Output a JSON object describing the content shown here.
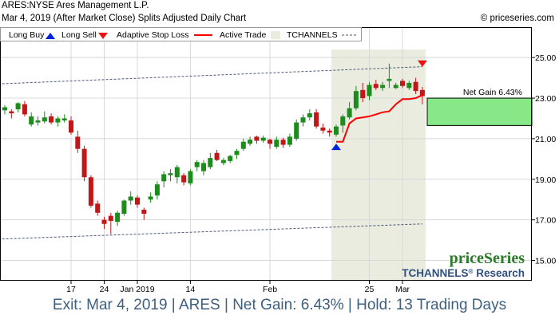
{
  "header": {
    "title": "ARES:NYSE Ares Management L.P.",
    "subtitle": "Mar 4, 2019 (After Market Close)  Splits Adjusted Daily Chart",
    "copyright": "© priceseries.com"
  },
  "legend": {
    "long_buy": "Long Buy",
    "long_sell": "Long Sell",
    "adaptive_stop": "Adaptive Stop Loss",
    "active_trade": "Active Trade",
    "tchannels": "TCHANNELS"
  },
  "annotations": {
    "net_gain_box": "Net Gain 6.43%"
  },
  "branding": {
    "logo": "priceSeries",
    "research": "TCHANNELS",
    "research_reg": "®",
    "research_suffix": " Research"
  },
  "footer": {
    "text": "Exit: Mar 4, 2019 | ARES | Net Gain: 6.43% | Hold: 13 Trading Days"
  },
  "colors": {
    "up": "#1c8c1c",
    "down": "#c01818",
    "stop": "#ff0000",
    "buy_arrow": "#0022dd",
    "sell_arrow": "#ee1111",
    "active_shade": "#e9ecdf",
    "gain_box": "#88e888",
    "channel": "#4a5a78",
    "grid": "#d8d8d8",
    "footer_text": "#3f5f7f",
    "brand_green": "#2a7a2a",
    "brand_blue": "#2f4f7f"
  },
  "chart_data": {
    "type": "candlestick",
    "ylim": [
      14.0,
      26.5
    ],
    "y_ticks": [
      "25.00",
      "23.00",
      "21.00",
      "19.00",
      "17.00",
      "15.00"
    ],
    "x_tick_labels": [
      "17",
      "24",
      "Jan 2019",
      "14",
      "Feb",
      "25",
      "Mar"
    ],
    "x_tick_bar_index": [
      10,
      15,
      20,
      28,
      40,
      55,
      60
    ],
    "bars": [
      {
        "o": 22.4,
        "h": 22.65,
        "l": 22.2,
        "c": 22.55
      },
      {
        "o": 22.35,
        "h": 22.45,
        "l": 22.0,
        "c": 22.25
      },
      {
        "o": 22.45,
        "h": 22.8,
        "l": 22.3,
        "c": 22.75
      },
      {
        "o": 22.7,
        "h": 22.85,
        "l": 22.1,
        "c": 22.2
      },
      {
        "o": 21.7,
        "h": 22.3,
        "l": 21.6,
        "c": 22.1
      },
      {
        "o": 21.8,
        "h": 22.1,
        "l": 21.65,
        "c": 21.9
      },
      {
        "o": 21.85,
        "h": 22.35,
        "l": 21.75,
        "c": 22.05
      },
      {
        "o": 22.1,
        "h": 22.25,
        "l": 21.7,
        "c": 21.8
      },
      {
        "o": 21.8,
        "h": 22.1,
        "l": 21.6,
        "c": 22.0
      },
      {
        "o": 21.9,
        "h": 22.2,
        "l": 21.8,
        "c": 22.0
      },
      {
        "o": 21.9,
        "h": 22.1,
        "l": 21.2,
        "c": 21.3
      },
      {
        "o": 21.1,
        "h": 21.4,
        "l": 20.3,
        "c": 20.5
      },
      {
        "o": 20.5,
        "h": 20.65,
        "l": 18.9,
        "c": 19.1
      },
      {
        "o": 19.1,
        "h": 19.2,
        "l": 17.6,
        "c": 17.7
      },
      {
        "o": 17.8,
        "h": 17.95,
        "l": 17.2,
        "c": 17.35
      },
      {
        "o": 17.0,
        "h": 17.15,
        "l": 16.55,
        "c": 16.8
      },
      {
        "o": 17.2,
        "h": 17.35,
        "l": 16.3,
        "c": 16.95
      },
      {
        "o": 16.9,
        "h": 17.45,
        "l": 16.7,
        "c": 17.35
      },
      {
        "o": 17.3,
        "h": 18.0,
        "l": 17.2,
        "c": 17.95
      },
      {
        "o": 17.95,
        "h": 18.4,
        "l": 17.75,
        "c": 18.15
      },
      {
        "o": 18.1,
        "h": 18.2,
        "l": 17.6,
        "c": 17.75
      },
      {
        "o": 17.5,
        "h": 17.6,
        "l": 17.0,
        "c": 17.3
      },
      {
        "o": 18.0,
        "h": 18.35,
        "l": 17.85,
        "c": 18.15
      },
      {
        "o": 18.2,
        "h": 18.9,
        "l": 18.0,
        "c": 18.75
      },
      {
        "o": 18.9,
        "h": 19.4,
        "l": 18.6,
        "c": 19.25
      },
      {
        "o": 19.2,
        "h": 19.5,
        "l": 18.9,
        "c": 19.3
      },
      {
        "o": 19.1,
        "h": 19.7,
        "l": 18.8,
        "c": 19.6
      },
      {
        "o": 19.2,
        "h": 19.3,
        "l": 18.7,
        "c": 18.85
      },
      {
        "o": 18.8,
        "h": 19.5,
        "l": 18.7,
        "c": 19.4
      },
      {
        "o": 19.6,
        "h": 19.95,
        "l": 19.4,
        "c": 19.85
      },
      {
        "o": 19.4,
        "h": 19.95,
        "l": 19.2,
        "c": 19.8
      },
      {
        "o": 19.6,
        "h": 20.3,
        "l": 19.5,
        "c": 20.05
      },
      {
        "o": 20.3,
        "h": 20.45,
        "l": 19.9,
        "c": 19.95
      },
      {
        "o": 19.8,
        "h": 20.05,
        "l": 19.7,
        "c": 19.95
      },
      {
        "o": 19.9,
        "h": 20.2,
        "l": 19.8,
        "c": 20.15
      },
      {
        "o": 20.2,
        "h": 20.5,
        "l": 20.0,
        "c": 20.4
      },
      {
        "o": 20.5,
        "h": 21.0,
        "l": 20.4,
        "c": 20.85
      },
      {
        "o": 20.75,
        "h": 21.1,
        "l": 20.65,
        "c": 20.95
      },
      {
        "o": 21.1,
        "h": 21.15,
        "l": 20.75,
        "c": 20.9
      },
      {
        "o": 20.9,
        "h": 21.15,
        "l": 20.8,
        "c": 21.05
      },
      {
        "o": 20.95,
        "h": 21.0,
        "l": 20.5,
        "c": 20.75
      },
      {
        "o": 20.6,
        "h": 21.1,
        "l": 20.5,
        "c": 20.95
      },
      {
        "o": 20.95,
        "h": 21.05,
        "l": 20.55,
        "c": 20.7
      },
      {
        "o": 20.7,
        "h": 21.25,
        "l": 20.6,
        "c": 21.1
      },
      {
        "o": 21.0,
        "h": 21.95,
        "l": 20.9,
        "c": 21.8
      },
      {
        "o": 21.8,
        "h": 22.2,
        "l": 21.6,
        "c": 22.05
      },
      {
        "o": 22.05,
        "h": 22.45,
        "l": 21.9,
        "c": 22.25
      },
      {
        "o": 22.3,
        "h": 22.45,
        "l": 21.5,
        "c": 21.6
      },
      {
        "o": 21.55,
        "h": 21.75,
        "l": 21.25,
        "c": 21.4
      },
      {
        "o": 21.4,
        "h": 21.5,
        "l": 21.1,
        "c": 21.3
      },
      {
        "o": 21.2,
        "h": 21.7,
        "l": 21.1,
        "c": 21.6
      },
      {
        "o": 21.65,
        "h": 22.2,
        "l": 21.3,
        "c": 22.1
      },
      {
        "o": 22.05,
        "h": 22.8,
        "l": 21.95,
        "c": 22.5
      },
      {
        "o": 22.5,
        "h": 23.6,
        "l": 22.4,
        "c": 23.35
      },
      {
        "o": 23.4,
        "h": 23.75,
        "l": 22.8,
        "c": 23.0
      },
      {
        "o": 23.1,
        "h": 23.8,
        "l": 22.9,
        "c": 23.65
      },
      {
        "o": 23.7,
        "h": 23.9,
        "l": 23.4,
        "c": 23.5
      },
      {
        "o": 23.5,
        "h": 23.8,
        "l": 23.35,
        "c": 23.65
      },
      {
        "o": 23.85,
        "h": 24.7,
        "l": 23.5,
        "c": 23.95
      },
      {
        "o": 23.5,
        "h": 23.75,
        "l": 23.45,
        "c": 23.65
      },
      {
        "o": 23.85,
        "h": 23.95,
        "l": 23.5,
        "c": 23.6
      },
      {
        "o": 23.5,
        "h": 23.85,
        "l": 23.4,
        "c": 23.75
      },
      {
        "o": 23.8,
        "h": 24.0,
        "l": 23.2,
        "c": 23.35
      },
      {
        "o": 23.4,
        "h": 23.55,
        "l": 22.7,
        "c": 23.1
      }
    ],
    "stop_loss": [
      {
        "i": 50,
        "v": 20.85
      },
      {
        "i": 51,
        "v": 20.85
      },
      {
        "i": 52,
        "v": 21.75
      },
      {
        "i": 53,
        "v": 22.0
      },
      {
        "i": 54,
        "v": 22.05
      },
      {
        "i": 55,
        "v": 22.1
      },
      {
        "i": 56,
        "v": 22.2
      },
      {
        "i": 57,
        "v": 22.3
      },
      {
        "i": 58,
        "v": 22.35
      },
      {
        "i": 59,
        "v": 22.7
      },
      {
        "i": 60,
        "v": 22.95
      },
      {
        "i": 61,
        "v": 22.95
      },
      {
        "i": 62,
        "v": 23.0
      },
      {
        "i": 63,
        "v": 23.15
      }
    ],
    "channel_upper": [
      {
        "i": -1,
        "v": 23.7
      },
      {
        "i": 63,
        "v": 24.55
      }
    ],
    "channel_lower": [
      {
        "i": -1,
        "v": 16.05
      },
      {
        "i": 63,
        "v": 16.8
      }
    ],
    "active_trade": {
      "start": 50,
      "end": 63
    },
    "long_buy": {
      "i": 50,
      "v": 20.6
    },
    "long_sell": {
      "i": 63,
      "v": 24.7
    },
    "net_gain": {
      "from": 21.65,
      "to": 23.0,
      "percent": 6.43
    }
  }
}
